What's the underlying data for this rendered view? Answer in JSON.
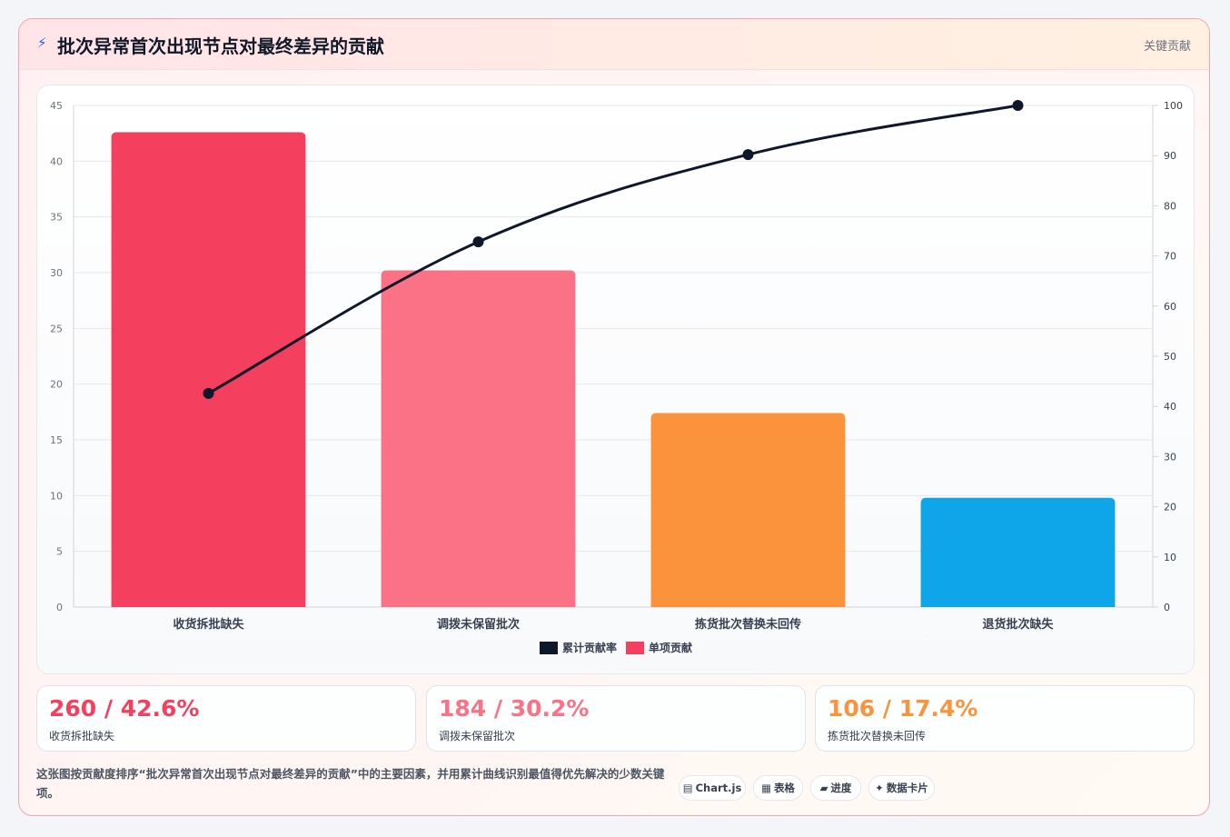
{
  "header": {
    "icon": "bolt-icon",
    "title": "批次异常首次出现节点对最终差异的贡献",
    "tag": "关键贡献"
  },
  "chart_data": {
    "type": "bar",
    "categories": [
      "收货拆批缺失",
      "调拨未保留批次",
      "拣货批次替换未回传",
      "退货批次缺失"
    ],
    "series": [
      {
        "name": "单项贡献",
        "type": "bar",
        "axis": "left",
        "values": [
          42.6,
          30.2,
          17.4,
          9.8
        ],
        "colors": [
          "#f43f5e",
          "#fb7185",
          "#fb923c",
          "#0ea5e9"
        ]
      },
      {
        "name": "累计贡献率",
        "type": "line",
        "axis": "right",
        "values": [
          42.6,
          72.8,
          90.2,
          100
        ],
        "color": "#0f172a"
      }
    ],
    "y_left": {
      "min": 0,
      "max": 45,
      "ticks": [
        0,
        5,
        10,
        15,
        20,
        25,
        30,
        35,
        40,
        45
      ]
    },
    "y_right": {
      "min": 0,
      "max": 100,
      "ticks": [
        0,
        10,
        20,
        30,
        40,
        50,
        60,
        70,
        80,
        90,
        100
      ]
    },
    "legend": [
      {
        "label": "累计贡献率",
        "color": "#0f172a"
      },
      {
        "label": "单项贡献",
        "color": "#f43f5e"
      }
    ],
    "legend_position": "bottom",
    "grid": true
  },
  "stats": [
    {
      "value": "260 / 42.6%",
      "label": "收货拆批缺失",
      "color": "#f43f5e"
    },
    {
      "value": "184 / 30.2%",
      "label": "调拨未保留批次",
      "color": "#fb7185"
    },
    {
      "value": "106 / 17.4%",
      "label": "拣货批次替换未回传",
      "color": "#fb923c"
    }
  ],
  "footer": {
    "description": "这张图按贡献度排序“批次异常首次出现节点对最终差异的贡献”中的主要因素，并用累计曲线识别最值得优先解决的少数关键项。",
    "chips": [
      {
        "icon": "chart-icon",
        "glyph": "▤",
        "label": "Chart.js"
      },
      {
        "icon": "table-icon",
        "glyph": "▦",
        "label": "表格"
      },
      {
        "icon": "progress-icon",
        "glyph": "▰",
        "label": "进度"
      },
      {
        "icon": "sparkle-icon",
        "glyph": "✦",
        "label": "数据卡片"
      }
    ]
  }
}
